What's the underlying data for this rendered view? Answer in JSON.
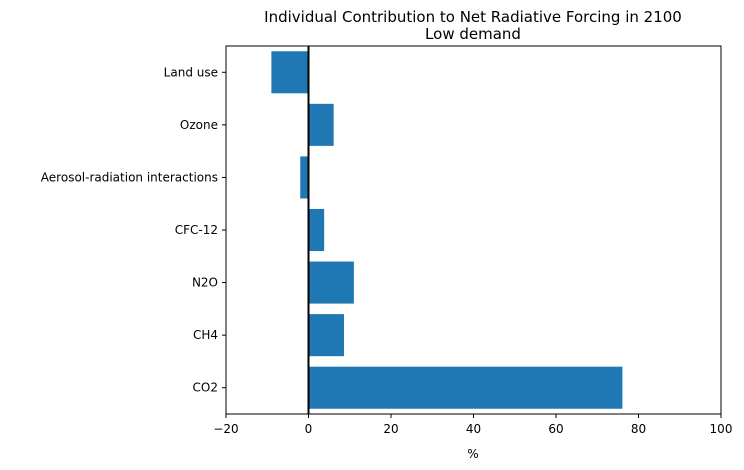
{
  "chart_data": {
    "type": "bar",
    "orientation": "horizontal",
    "title": "Individual Contribution to Net Radiative Forcing in 2100",
    "subtitle": "Low demand",
    "xlabel": "%",
    "ylabel": "",
    "xlim": [
      -20,
      100
    ],
    "xticks": [
      -20,
      0,
      20,
      40,
      60,
      80,
      100
    ],
    "categories": [
      "CO2",
      "CH4",
      "N2O",
      "CFC-12",
      "Aerosol-radiation interactions",
      "Ozone",
      "Land use"
    ],
    "values": [
      76.1,
      8.6,
      11.0,
      3.8,
      -2.0,
      6.1,
      -9.0
    ],
    "bar_color": "#1f77b4",
    "zero_line_color": "#000000",
    "grid": false,
    "legend": "none"
  }
}
